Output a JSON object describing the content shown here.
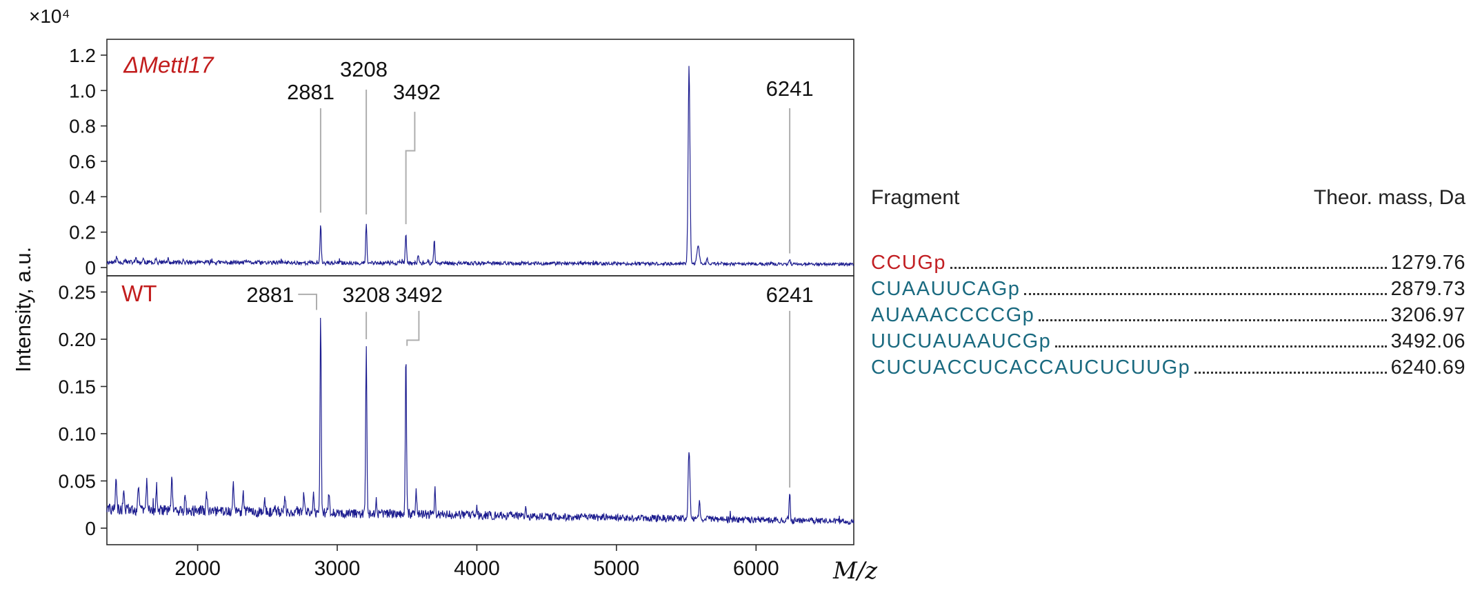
{
  "figure": {
    "y_scale_label": "×10⁴"
  },
  "fragment_table": {
    "header": {
      "fragment": "Fragment",
      "mass": "Theor. mass, Da"
    },
    "rows": [
      {
        "fragment": "CCUGp",
        "mass": "1279.76",
        "color": "#c21f23"
      },
      {
        "fragment": "CUAAUUCAGp",
        "mass": "2879.73",
        "color": "#1a6a80"
      },
      {
        "fragment": "AUAAACCCCGp",
        "mass": "3206.97",
        "color": "#1a6a80"
      },
      {
        "fragment": "UUCUAUAAUCGp",
        "mass": "3492.06",
        "color": "#1a6a80"
      },
      {
        "fragment": "CUCUACCUCACCAUCUCUUGp",
        "mass": "6240.69",
        "color": "#1a6a80"
      }
    ]
  },
  "chart_data": {
    "type": "line",
    "kind": "stacked-mass-spectra",
    "x_label": "M/z",
    "y_label": "Intensity, a.u.",
    "y_scale_label": "×10⁴",
    "x_range": [
      1350,
      6700
    ],
    "x_ticks": [
      2000,
      3000,
      4000,
      5000,
      6000
    ],
    "grid": false,
    "panels": [
      {
        "title": "ΔMettl17",
        "title_color": "#c21d1d",
        "title_italic": true,
        "title_x": 1470,
        "title_y": 1.1,
        "y_max": 1.2,
        "y_ticks": [
          0,
          0.2,
          0.4,
          0.6,
          0.8,
          1.0,
          1.2
        ],
        "y_tick_labels": [
          "0",
          "0.2",
          "0.4",
          "0.6",
          "0.8",
          "1.0",
          "1.2"
        ],
        "trace_color": "#1d1d8f",
        "seed": 11,
        "baseline": [
          0.03,
          0.018
        ],
        "noise": [
          0.013,
          0.008
        ],
        "peaks": [
          {
            "mz": 1420,
            "h": 0.03
          },
          {
            "mz": 1480,
            "h": 0.022
          },
          {
            "mz": 1560,
            "h": 0.028
          },
          {
            "mz": 1610,
            "h": 0.02
          },
          {
            "mz": 1700,
            "h": 0.024
          },
          {
            "mz": 1790,
            "h": 0.018
          },
          {
            "mz": 1900,
            "h": 0.015
          },
          {
            "mz": 2100,
            "h": 0.012
          },
          {
            "mz": 2350,
            "h": 0.015
          },
          {
            "mz": 2600,
            "h": 0.012
          },
          {
            "mz": 2881,
            "h": 0.225
          },
          {
            "mz": 3208,
            "h": 0.215
          },
          {
            "mz": 3492,
            "h": 0.175
          },
          {
            "mz": 3580,
            "h": 0.045
          },
          {
            "mz": 3695,
            "h": 0.125
          },
          {
            "mz": 4200,
            "h": 0.01
          },
          {
            "mz": 4700,
            "h": 0.008
          },
          {
            "mz": 5520,
            "h": 1.12,
            "w": 9
          },
          {
            "mz": 5585,
            "h": 0.1,
            "w": 12
          },
          {
            "mz": 5650,
            "h": 0.035
          },
          {
            "mz": 6241,
            "h": 0.03
          }
        ],
        "annotations": [
          {
            "text": "2881",
            "tx": 2810,
            "ty": 0.95,
            "line": [
              [
                2881,
                0.9
              ],
              [
                2881,
                0.31
              ]
            ]
          },
          {
            "text": "3208",
            "tx": 3190,
            "ty": 1.08,
            "line": [
              [
                3208,
                1.005
              ],
              [
                3208,
                0.3
              ]
            ]
          },
          {
            "text": "3492",
            "tx": 3570,
            "ty": 0.95,
            "line": [
              [
                3555,
                0.88
              ],
              [
                3555,
                0.66
              ],
              [
                3492,
                0.66
              ],
              [
                3492,
                0.245
              ]
            ]
          },
          {
            "text": "6241",
            "tx": 6241,
            "ty": 0.97,
            "line": [
              [
                6241,
                0.9
              ],
              [
                6241,
                0.08
              ]
            ]
          }
        ]
      },
      {
        "title": "WT",
        "title_color": "#c21d1d",
        "title_italic": false,
        "title_x": 1455,
        "title_y": 0.24,
        "y_max": 0.25,
        "y_ticks": [
          0,
          0.05,
          0.1,
          0.15,
          0.2,
          0.25
        ],
        "y_tick_labels": [
          "0",
          "0.05",
          "0.10",
          "0.15",
          "0.20",
          "0.25"
        ],
        "trace_color": "#1d1d8f",
        "seed": 29,
        "baseline": [
          0.02,
          0.007
        ],
        "noise": [
          0.006,
          0.003
        ],
        "peaks": [
          {
            "mz": 1415,
            "h": 0.033
          },
          {
            "mz": 1470,
            "h": 0.02
          },
          {
            "mz": 1575,
            "h": 0.028
          },
          {
            "mz": 1635,
            "h": 0.033
          },
          {
            "mz": 1705,
            "h": 0.026
          },
          {
            "mz": 1815,
            "h": 0.032
          },
          {
            "mz": 1910,
            "h": 0.018
          },
          {
            "mz": 2065,
            "h": 0.018
          },
          {
            "mz": 2255,
            "h": 0.028
          },
          {
            "mz": 2325,
            "h": 0.022
          },
          {
            "mz": 2480,
            "h": 0.016
          },
          {
            "mz": 2625,
            "h": 0.018
          },
          {
            "mz": 2760,
            "h": 0.018
          },
          {
            "mz": 2830,
            "h": 0.022
          },
          {
            "mz": 2881,
            "h": 0.212
          },
          {
            "mz": 2940,
            "h": 0.024
          },
          {
            "mz": 3208,
            "h": 0.176
          },
          {
            "mz": 3280,
            "h": 0.016
          },
          {
            "mz": 3492,
            "h": 0.17
          },
          {
            "mz": 3565,
            "h": 0.026
          },
          {
            "mz": 3700,
            "h": 0.03
          },
          {
            "mz": 4000,
            "h": 0.008
          },
          {
            "mz": 4350,
            "h": 0.01
          },
          {
            "mz": 5520,
            "h": 0.072,
            "w": 9
          },
          {
            "mz": 5595,
            "h": 0.018
          },
          {
            "mz": 6241,
            "h": 0.03
          }
        ],
        "annotations": [
          {
            "text": "2881",
            "tx": 2520,
            "ty": 0.2394,
            "line": [
              [
                2720,
                0.2475
              ],
              [
                2852,
                0.2475
              ],
              [
                2852,
                0.231
              ]
            ]
          },
          {
            "text": "3208",
            "tx": 3208,
            "ty": 0.2394,
            "line": [
              [
                3208,
                0.229
              ],
              [
                3208,
                0.2
              ]
            ]
          },
          {
            "text": "3492",
            "tx": 3585,
            "ty": 0.2394,
            "line": [
              [
                3585,
                0.23
              ],
              [
                3585,
                0.199
              ],
              [
                3500,
                0.199
              ],
              [
                3500,
                0.193
              ]
            ]
          },
          {
            "text": "6241",
            "tx": 6241,
            "ty": 0.2394,
            "line": [
              [
                6241,
                0.23
              ],
              [
                6241,
                0.043
              ]
            ]
          }
        ]
      }
    ]
  }
}
